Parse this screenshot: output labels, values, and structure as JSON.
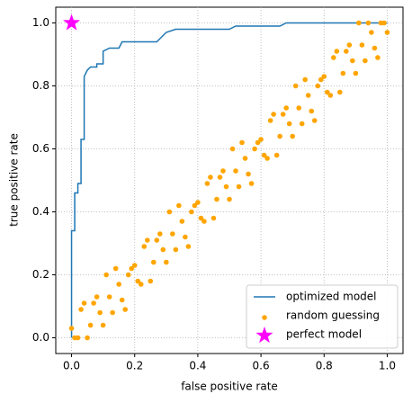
{
  "chart_data": {
    "type": "scatter",
    "xlabel": "false positive rate",
    "ylabel": "true positive rate",
    "xlim": [
      -0.05,
      1.05
    ],
    "ylim": [
      -0.05,
      1.05
    ],
    "xticks": [
      {
        "value": 0,
        "label": "0.0"
      },
      0.2,
      0.4,
      0.6,
      0.8,
      {
        "value": 1,
        "label": "1.0"
      }
    ],
    "yticks": [
      {
        "value": 0,
        "label": "0.0"
      },
      0.2,
      0.4,
      0.6,
      0.8,
      {
        "value": 1,
        "label": "1.0"
      }
    ],
    "grid": true,
    "legend": "lower right",
    "series": [
      {
        "name": "optimized model",
        "type": "line",
        "color": "#1f77b4",
        "x": [
          0,
          0,
          0.01,
          0.01,
          0.02,
          0.02,
          0.03,
          0.03,
          0.04,
          0.04,
          0.05,
          0.06,
          0.08,
          0.08,
          0.1,
          0.1,
          0.12,
          0.15,
          0.16,
          0.27,
          0.28,
          0.3,
          0.33,
          0.5,
          0.52,
          0.66,
          0.68,
          1.0
        ],
        "values": [
          0,
          0.34,
          0.34,
          0.46,
          0.46,
          0.49,
          0.49,
          0.63,
          0.63,
          0.83,
          0.85,
          0.86,
          0.86,
          0.87,
          0.87,
          0.91,
          0.92,
          0.92,
          0.94,
          0.94,
          0.95,
          0.97,
          0.98,
          0.98,
          0.99,
          0.99,
          1.0,
          1.0
        ]
      },
      {
        "name": "random guessing",
        "type": "scatter",
        "color": "#ffa500",
        "x": [
          0,
          0.02,
          0.04,
          0.06,
          0.08,
          0.1,
          0.12,
          0.14,
          0.16,
          0.18,
          0.2,
          0.22,
          0.24,
          0.26,
          0.28,
          0.3,
          0.32,
          0.34,
          0.36,
          0.38,
          0.4,
          0.42,
          0.44,
          0.46,
          0.48,
          0.5,
          0.52,
          0.54,
          0.56,
          0.58,
          0.6,
          0.62,
          0.64,
          0.66,
          0.68,
          0.7,
          0.72,
          0.74,
          0.76,
          0.78,
          0.8,
          0.82,
          0.84,
          0.86,
          0.88,
          0.9,
          0.92,
          0.94,
          0.96,
          0.98,
          1.0,
          0.01,
          0.03,
          0.05,
          0.07,
          0.09,
          0.11,
          0.13,
          0.15,
          0.17,
          0.19,
          0.21,
          0.23,
          0.25,
          0.27,
          0.29,
          0.31,
          0.33,
          0.35,
          0.37,
          0.39,
          0.41,
          0.43,
          0.45,
          0.47,
          0.49,
          0.51,
          0.53,
          0.55,
          0.57,
          0.59,
          0.61,
          0.63,
          0.65,
          0.67,
          0.69,
          0.71,
          0.73,
          0.75,
          0.77,
          0.79,
          0.81,
          0.83,
          0.85,
          0.87,
          0.89,
          0.91,
          0.93,
          0.95,
          0.97,
          0.99
        ],
        "values": [
          0.03,
          0.0,
          0.11,
          0.04,
          0.13,
          0.04,
          0.13,
          0.22,
          0.12,
          0.2,
          0.23,
          0.17,
          0.31,
          0.24,
          0.33,
          0.24,
          0.33,
          0.42,
          0.32,
          0.4,
          0.43,
          0.37,
          0.51,
          0.44,
          0.53,
          0.44,
          0.53,
          0.62,
          0.52,
          0.6,
          0.63,
          0.57,
          0.71,
          0.64,
          0.73,
          0.64,
          0.73,
          0.82,
          0.72,
          0.8,
          0.83,
          0.77,
          0.91,
          0.84,
          0.93,
          0.84,
          0.93,
          1.0,
          0.92,
          1.0,
          0.97,
          0.0,
          0.09,
          0.0,
          0.11,
          0.08,
          0.2,
          0.08,
          0.17,
          0.09,
          0.22,
          0.18,
          0.29,
          0.18,
          0.31,
          0.28,
          0.4,
          0.28,
          0.37,
          0.29,
          0.42,
          0.38,
          0.49,
          0.38,
          0.51,
          0.48,
          0.6,
          0.48,
          0.57,
          0.49,
          0.62,
          0.58,
          0.69,
          0.58,
          0.71,
          0.68,
          0.8,
          0.68,
          0.77,
          0.69,
          0.82,
          0.78,
          0.89,
          0.78,
          0.91,
          0.88,
          1.0,
          0.88,
          0.97,
          0.89,
          1.0
        ]
      },
      {
        "name": "perfect model",
        "type": "star",
        "color": "#ff00ff",
        "x": [
          0
        ],
        "values": [
          1
        ]
      }
    ]
  }
}
